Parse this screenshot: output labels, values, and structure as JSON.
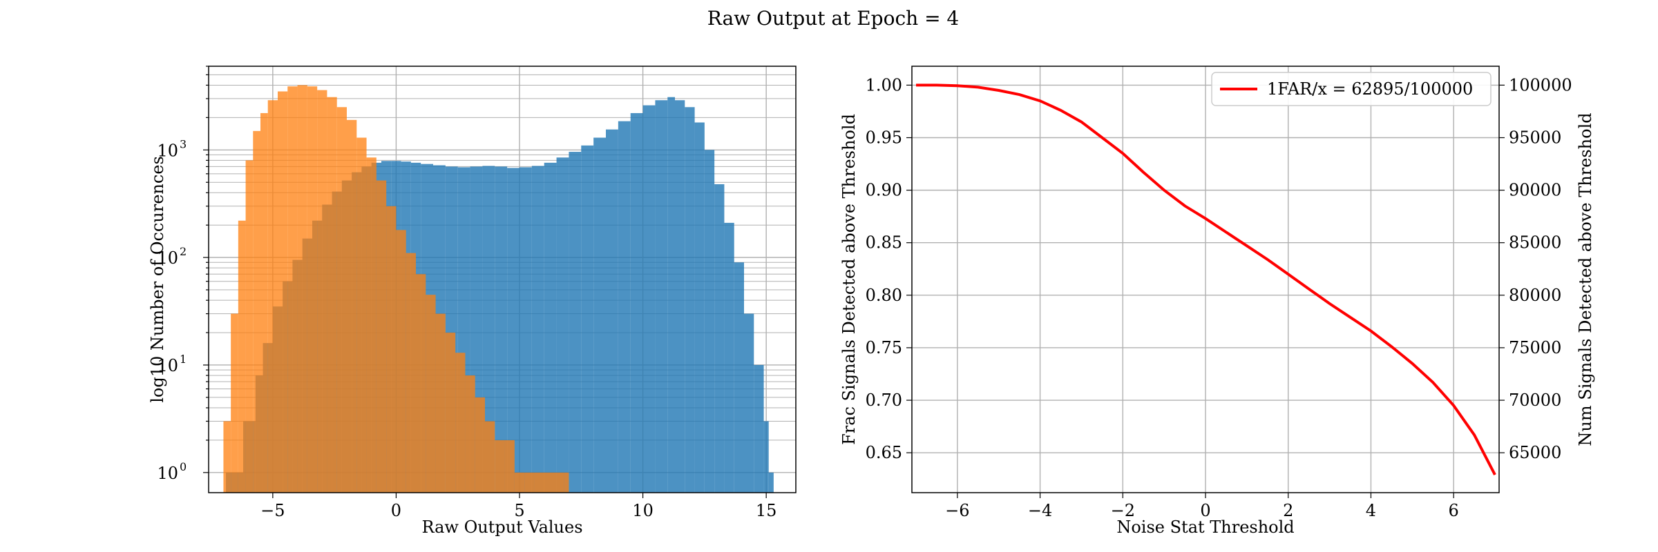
{
  "figure": {
    "title": "Raw Output at Epoch = 4"
  },
  "chart_data": [
    {
      "type": "histogram",
      "xlabel": "Raw Output Values",
      "ylabel": "log10 Number of Occurences",
      "yscale": "log",
      "xlim": [
        -7.6,
        16.2
      ],
      "ylim": [
        0.65,
        6000
      ],
      "grid": true,
      "x_tick_labels": [
        "−5",
        "0",
        "5",
        "10",
        "15"
      ],
      "x_ticks": [
        -5,
        0,
        5,
        10,
        15
      ],
      "y_tick_labels": [
        "10",
        "10",
        "10",
        "10"
      ],
      "y_tick_exponents": [
        "0",
        "1",
        "2",
        "3"
      ],
      "y_ticks": [
        1,
        10,
        100,
        1000
      ],
      "series": [
        {
          "color": "#1f77b4",
          "alpha": 0.8,
          "bins": [
            [
              -6.9,
              1
            ],
            [
              -6.2,
              3
            ],
            [
              -5.7,
              8
            ],
            [
              -5.4,
              16
            ],
            [
              -5.0,
              35
            ],
            [
              -4.6,
              60
            ],
            [
              -4.2,
              95
            ],
            [
              -3.8,
              150
            ],
            [
              -3.4,
              220
            ],
            [
              -3.0,
              310
            ],
            [
              -2.6,
              410
            ],
            [
              -2.2,
              520
            ],
            [
              -1.8,
              620
            ],
            [
              -1.4,
              700
            ],
            [
              -1.0,
              760
            ],
            [
              -0.6,
              790
            ],
            [
              -0.2,
              790
            ],
            [
              0.2,
              780
            ],
            [
              0.6,
              760
            ],
            [
              1.0,
              740
            ],
            [
              1.5,
              720
            ],
            [
              2.0,
              700
            ],
            [
              2.5,
              690
            ],
            [
              3.0,
              700
            ],
            [
              3.5,
              710
            ],
            [
              4.0,
              700
            ],
            [
              4.5,
              680
            ],
            [
              5.0,
              690
            ],
            [
              5.5,
              710
            ],
            [
              6.0,
              760
            ],
            [
              6.5,
              850
            ],
            [
              7.0,
              960
            ],
            [
              7.5,
              1100
            ],
            [
              8.0,
              1300
            ],
            [
              8.5,
              1550
            ],
            [
              9.0,
              1850
            ],
            [
              9.5,
              2200
            ],
            [
              10.0,
              2600
            ],
            [
              10.5,
              2900
            ],
            [
              11.0,
              3100
            ],
            [
              11.3,
              2900
            ],
            [
              11.7,
              2500
            ],
            [
              12.1,
              1800
            ],
            [
              12.5,
              1000
            ],
            [
              12.9,
              480
            ],
            [
              13.3,
              210
            ],
            [
              13.7,
              90
            ],
            [
              14.1,
              30
            ],
            [
              14.5,
              10
            ],
            [
              14.9,
              3
            ],
            [
              15.1,
              1
            ]
          ]
        },
        {
          "color": "#ff7f0e",
          "alpha": 0.75,
          "bins": [
            [
              -7.0,
              3
            ],
            [
              -6.7,
              30
            ],
            [
              -6.4,
              220
            ],
            [
              -6.1,
              800
            ],
            [
              -5.8,
              1500
            ],
            [
              -5.5,
              2200
            ],
            [
              -5.2,
              2900
            ],
            [
              -4.8,
              3500
            ],
            [
              -4.4,
              3900
            ],
            [
              -4.0,
              4000
            ],
            [
              -3.6,
              3900
            ],
            [
              -3.2,
              3600
            ],
            [
              -2.8,
              3100
            ],
            [
              -2.4,
              2500
            ],
            [
              -2.0,
              1900
            ],
            [
              -1.6,
              1300
            ],
            [
              -1.2,
              850
            ],
            [
              -0.8,
              520
            ],
            [
              -0.4,
              300
            ],
            [
              0.0,
              180
            ],
            [
              0.4,
              110
            ],
            [
              0.8,
              70
            ],
            [
              1.2,
              45
            ],
            [
              1.6,
              30
            ],
            [
              2.0,
              20
            ],
            [
              2.4,
              13
            ],
            [
              2.8,
              8
            ],
            [
              3.2,
              5
            ],
            [
              3.6,
              3
            ],
            [
              4.0,
              2
            ],
            [
              4.4,
              2
            ],
            [
              4.8,
              1
            ],
            [
              5.2,
              1
            ],
            [
              5.6,
              1
            ],
            [
              6.8,
              1
            ]
          ]
        }
      ]
    },
    {
      "type": "line",
      "xlabel": "Noise Stat Threshold",
      "ylabel": "Frac Signals Detected above Threshold",
      "ylabel_right": "Num Signals Detected above Threshold",
      "xlim": [
        -7.1,
        7.1
      ],
      "ylim": [
        0.612,
        1.018
      ],
      "ylim_right": [
        61200,
        101800
      ],
      "grid": true,
      "x_ticks": [
        -6,
        -4,
        -2,
        0,
        2,
        4,
        6
      ],
      "x_tick_labels": [
        "−6",
        "−4",
        "−2",
        "0",
        "2",
        "4",
        "6"
      ],
      "y_ticks": [
        0.65,
        0.7,
        0.75,
        0.8,
        0.85,
        0.9,
        0.95,
        1.0
      ],
      "y_tick_labels": [
        "0.65",
        "0.70",
        "0.75",
        "0.80",
        "0.85",
        "0.90",
        "0.95",
        "1.00"
      ],
      "y_ticks_right": [
        65000,
        70000,
        75000,
        80000,
        85000,
        90000,
        95000,
        100000
      ],
      "y_tick_labels_right": [
        "65000",
        "70000",
        "75000",
        "80000",
        "85000",
        "90000",
        "95000",
        "100000"
      ],
      "legend": {
        "position": "top-right",
        "label": "1FAR/x = 62895/100000"
      },
      "series": [
        {
          "name": "1FAR/x = 62895/100000",
          "color": "#ff0000",
          "x": [
            -7.0,
            -6.5,
            -6.0,
            -5.5,
            -5.0,
            -4.5,
            -4.0,
            -3.5,
            -3.0,
            -2.5,
            -2.0,
            -1.5,
            -1.0,
            -0.5,
            0.0,
            0.5,
            1.0,
            1.5,
            2.0,
            2.5,
            3.0,
            3.5,
            4.0,
            4.5,
            5.0,
            5.5,
            6.0,
            6.5,
            7.0
          ],
          "y": [
            1.0,
            1.0,
            0.9995,
            0.998,
            0.995,
            0.991,
            0.985,
            0.976,
            0.965,
            0.95,
            0.935,
            0.917,
            0.9,
            0.885,
            0.873,
            0.86,
            0.847,
            0.834,
            0.82,
            0.806,
            0.792,
            0.779,
            0.766,
            0.751,
            0.735,
            0.717,
            0.695,
            0.667,
            0.629
          ]
        }
      ]
    }
  ]
}
